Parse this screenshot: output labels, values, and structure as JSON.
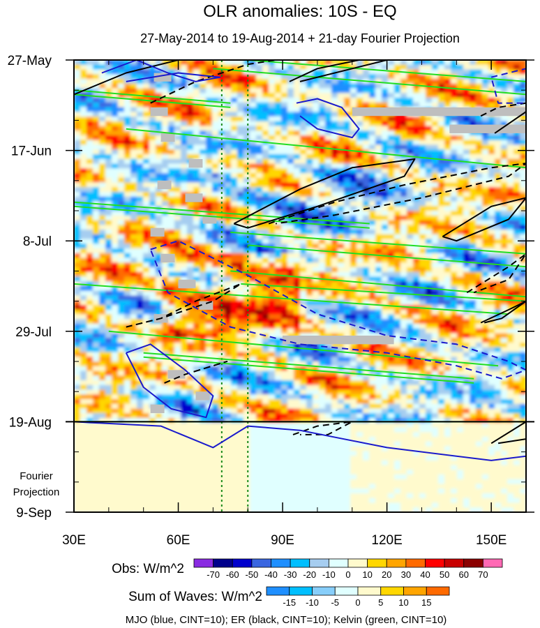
{
  "chart_data": {
    "type": "heatmap",
    "title": "OLR anomalies: 10S - EQ",
    "subtitle": "27-May-2014 to 19-Aug-2014 + 21-day Fourier Projection",
    "x_axis": {
      "range": [
        30,
        160
      ],
      "ticks": [
        30,
        60,
        90,
        120,
        150
      ],
      "tick_labels": [
        "30E",
        "60E",
        "90E",
        "120E",
        "150E"
      ],
      "minor_step": 10
    },
    "y_axis": {
      "range": [
        "2014-05-27",
        "2014-09-09"
      ],
      "ticks": [
        "2014-05-27",
        "2014-06-17",
        "2014-07-08",
        "2014-07-29",
        "2014-08-19",
        "2014-09-09"
      ],
      "tick_labels": [
        "27-May",
        "17-Jun",
        "8-Jul",
        "29-Jul",
        "19-Aug",
        "9-Sep"
      ],
      "direction": "time increases downward",
      "minor_step_days": 7
    },
    "observation_end": "2014-08-19",
    "projection_label": [
      "Fourier",
      "Projection"
    ],
    "reference_longitudes": [
      72.5,
      80
    ],
    "obs_colorbar": {
      "label": "Obs: W/m^2",
      "levels": [
        -70,
        -60,
        -50,
        -40,
        -30,
        -20,
        -10,
        0,
        10,
        20,
        30,
        40,
        50,
        60,
        70
      ],
      "colors": [
        "#8a2be2",
        "#00008b",
        "#0000cd",
        "#3a66e0",
        "#1e8fff",
        "#00bfff",
        "#a6cdf0",
        "#e0ffff",
        "#fffacd",
        "#ffd700",
        "#ffa500",
        "#ff6a00",
        "#ff0000",
        "#c80000",
        "#8b0000",
        "#ff69b4"
      ]
    },
    "waves_colorbar": {
      "label": "Sum of Waves: W/m^2",
      "levels": [
        -15,
        -10,
        -5,
        0,
        5,
        10,
        15
      ],
      "colors": [
        "#1e8fff",
        "#00bfff",
        "#87cefa",
        "#e0ffff",
        "#fffacd",
        "#ffd700",
        "#ffa500",
        "#ff6a00"
      ]
    },
    "footnote": "MJO (blue, CINT=10); ER (black, CINT=10); Kelvin (green, CINT=10)",
    "series_colors": {
      "mjo": "#1a1acc",
      "er": "#000000",
      "kelvin": "#22dd22",
      "missing": "#bebebe",
      "reference": "#1a8a1a"
    },
    "mjo_contours": [
      {
        "style": "solid",
        "lon": [
          38,
          48,
          57,
          65,
          72,
          60,
          45
        ],
        "date": [
          "2014-05-30",
          "2014-05-27",
          "2014-05-30",
          "2014-06-01",
          "2014-05-31",
          "2014-05-30",
          "2014-06-01"
        ]
      },
      {
        "style": "solid",
        "lon": [
          94,
          100,
          107,
          112,
          110,
          100,
          95
        ],
        "date": [
          "2014-06-06",
          "2014-06-05",
          "2014-06-07",
          "2014-06-12",
          "2014-06-14",
          "2014-06-12",
          "2014-06-09"
        ]
      },
      {
        "style": "dashed",
        "lon": [
          52,
          60,
          80,
          100,
          120,
          140,
          155,
          160,
          153,
          140,
          120,
          95,
          75,
          57,
          52
        ],
        "date": [
          "2014-07-10",
          "2014-07-08",
          "2014-07-16",
          "2014-07-25",
          "2014-07-30",
          "2014-08-01",
          "2014-08-05",
          "2014-08-07",
          "2014-08-09",
          "2014-08-06",
          "2014-08-03",
          "2014-08-01",
          "2014-07-28",
          "2014-07-20",
          "2014-07-10"
        ]
      },
      {
        "style": "solid",
        "lon": [
          45,
          52,
          62,
          70,
          68,
          58,
          50,
          45
        ],
        "date": [
          "2014-08-03",
          "2014-08-01",
          "2014-08-07",
          "2014-08-13",
          "2014-08-18",
          "2014-08-16",
          "2014-08-11",
          "2014-08-03"
        ]
      },
      {
        "style": "solid",
        "lon": [
          30,
          55,
          70,
          80,
          95,
          120,
          150,
          160
        ],
        "date": [
          "2014-08-19",
          "2014-08-20",
          "2014-08-25",
          "2014-08-20",
          "2014-08-21",
          "2014-08-25",
          "2014-08-28",
          "2014-08-27"
        ]
      },
      {
        "style": "dashed",
        "lon": [
          150,
          160,
          160,
          152,
          150
        ],
        "date": [
          "2014-05-31",
          "2014-05-29",
          "2014-06-06",
          "2014-06-06",
          "2014-05-31"
        ]
      }
    ],
    "er_contours": [
      {
        "style": "solid",
        "lon": [
          30,
          45,
          60,
          72
        ],
        "date": [
          "2014-06-04",
          "2014-05-30",
          "2014-05-27",
          "2014-05-27"
        ]
      },
      {
        "style": "dashed",
        "lon": [
          52,
          65,
          80,
          88
        ],
        "date": [
          "2014-06-06",
          "2014-06-01",
          "2014-05-28",
          "2014-05-27"
        ]
      },
      {
        "style": "solid",
        "lon": [
          92,
          100,
          112,
          120,
          110,
          95
        ],
        "date": [
          "2014-06-01",
          "2014-05-29",
          "2014-05-27",
          "2014-05-27",
          "2014-05-29",
          "2014-06-01"
        ]
      },
      {
        "style": "solid",
        "lon": [
          76,
          95,
          110,
          128,
          125,
          100,
          80,
          76
        ],
        "date": [
          "2014-07-04",
          "2014-06-26",
          "2014-06-21",
          "2014-06-19",
          "2014-06-23",
          "2014-06-30",
          "2014-07-05",
          "2014-07-04"
        ]
      },
      {
        "style": "dashed",
        "lon": [
          86,
          105,
          125,
          150,
          160,
          155,
          130,
          105,
          88
        ],
        "date": [
          "2014-07-04",
          "2014-06-29",
          "2014-06-25",
          "2014-06-21",
          "2014-06-20",
          "2014-06-23",
          "2014-06-28",
          "2014-07-02",
          "2014-07-04"
        ]
      },
      {
        "style": "solid",
        "lon": [
          136,
          150,
          160,
          155,
          140,
          136
        ],
        "date": [
          "2014-07-07",
          "2014-06-30",
          "2014-06-28",
          "2014-07-03",
          "2014-07-08",
          "2014-07-07"
        ]
      },
      {
        "style": "dashed",
        "lon": [
          143,
          155,
          160,
          155,
          145
        ],
        "date": [
          "2014-07-20",
          "2014-07-14",
          "2014-07-11",
          "2014-07-17",
          "2014-07-20"
        ]
      },
      {
        "style": "solid",
        "lon": [
          147,
          155,
          160,
          153,
          148
        ],
        "date": [
          "2014-07-27",
          "2014-07-24",
          "2014-07-22",
          "2014-07-26",
          "2014-07-27"
        ]
      },
      {
        "style": "dashed",
        "lon": [
          45,
          55,
          65,
          78,
          70,
          55,
          45
        ],
        "date": [
          "2014-07-28",
          "2014-07-26",
          "2014-07-22",
          "2014-07-18",
          "2014-07-22",
          "2014-07-26",
          "2014-07-28"
        ]
      },
      {
        "style": "dashed",
        "lon": [
          56,
          62,
          74,
          66
        ],
        "date": [
          "2014-08-10",
          "2014-08-08",
          "2014-08-05",
          "2014-08-07"
        ]
      },
      {
        "style": "dashed",
        "lon": [
          93,
          100,
          110,
          103,
          95
        ],
        "date": [
          "2014-08-22",
          "2014-08-20",
          "2014-08-19",
          "2014-08-22",
          "2014-08-22"
        ]
      },
      {
        "style": "solid",
        "lon": [
          150,
          160,
          160,
          152
        ],
        "date": [
          "2014-08-24",
          "2014-08-19",
          "2014-08-23",
          "2014-08-24"
        ]
      },
      {
        "style": "solid",
        "lon": [
          151,
          160
        ],
        "date": [
          "2014-06-13",
          "2014-06-08"
        ]
      },
      {
        "style": "dashed",
        "lon": [
          147,
          152,
          160
        ],
        "date": [
          "2014-06-09",
          "2014-06-07",
          "2014-06-06"
        ]
      }
    ],
    "kelvin_contours": [
      {
        "lon": [
          30,
          75
        ],
        "date": [
          "2014-06-03",
          "2014-06-06"
        ]
      },
      {
        "lon": [
          30,
          75
        ],
        "date": [
          "2014-06-04",
          "2014-06-07"
        ]
      },
      {
        "lon": [
          70,
          160
        ],
        "date": [
          "2014-05-29",
          "2014-06-04"
        ]
      },
      {
        "lon": [
          80,
          160
        ],
        "date": [
          "2014-05-27",
          "2014-06-01"
        ]
      },
      {
        "lon": [
          45,
          160
        ],
        "date": [
          "2014-06-12",
          "2014-06-21"
        ]
      },
      {
        "lon": [
          30,
          115
        ],
        "date": [
          "2014-06-29",
          "2014-07-04"
        ]
      },
      {
        "lon": [
          30,
          115
        ],
        "date": [
          "2014-06-30",
          "2014-07-05"
        ]
      },
      {
        "lon": [
          75,
          160
        ],
        "date": [
          "2014-07-06",
          "2014-07-11"
        ]
      },
      {
        "lon": [
          80,
          160
        ],
        "date": [
          "2014-07-09",
          "2014-07-14"
        ]
      },
      {
        "lon": [
          75,
          160
        ],
        "date": [
          "2014-07-15",
          "2014-07-21"
        ]
      },
      {
        "lon": [
          78,
          160
        ],
        "date": [
          "2014-07-18",
          "2014-07-22"
        ]
      },
      {
        "lon": [
          30,
          155
        ],
        "date": [
          "2014-07-18",
          "2014-07-25"
        ]
      },
      {
        "lon": [
          40,
          152
        ],
        "date": [
          "2014-07-29",
          "2014-08-06"
        ]
      },
      {
        "lon": [
          50,
          145
        ],
        "date": [
          "2014-08-03",
          "2014-08-09"
        ]
      },
      {
        "lon": [
          50,
          145
        ],
        "date": [
          "2014-08-04",
          "2014-08-10"
        ]
      },
      {
        "lon": [
          30,
          160
        ],
        "date": [
          "2014-08-19",
          "2014-08-19"
        ]
      }
    ],
    "missing_data_cells": [
      {
        "lon": [
          53,
          58
        ],
        "date": [
          "2014-05-30",
          "2014-06-01"
        ]
      },
      {
        "lon": [
          52,
          57
        ],
        "date": [
          "2014-06-07",
          "2014-06-09"
        ]
      },
      {
        "lon": [
          55,
          59
        ],
        "date": [
          "2014-06-13",
          "2014-06-15"
        ]
      },
      {
        "lon": [
          110,
          160
        ],
        "date": [
          "2014-06-07",
          "2014-06-09"
        ]
      },
      {
        "lon": [
          138,
          160
        ],
        "date": [
          "2014-06-11",
          "2014-06-13"
        ]
      },
      {
        "lon": [
          63,
          67
        ],
        "date": [
          "2014-06-19",
          "2014-06-21"
        ]
      },
      {
        "lon": [
          54,
          58
        ],
        "date": [
          "2014-06-24",
          "2014-06-26"
        ]
      },
      {
        "lon": [
          62,
          67
        ],
        "date": [
          "2014-06-27",
          "2014-06-29"
        ]
      },
      {
        "lon": [
          67,
          71
        ],
        "date": [
          "2014-07-02",
          "2014-07-04"
        ]
      },
      {
        "lon": [
          52,
          56
        ],
        "date": [
          "2014-07-05",
          "2014-07-07"
        ]
      },
      {
        "lon": [
          55,
          59
        ],
        "date": [
          "2014-07-11",
          "2014-07-13"
        ]
      },
      {
        "lon": [
          60,
          65
        ],
        "date": [
          "2014-07-17",
          "2014-07-19"
        ]
      },
      {
        "lon": [
          66,
          70
        ],
        "date": [
          "2014-07-22",
          "2014-07-24"
        ]
      },
      {
        "lon": [
          53,
          57
        ],
        "date": [
          "2014-07-25",
          "2014-07-27"
        ]
      },
      {
        "lon": [
          90,
          122
        ],
        "date": [
          "2014-07-30",
          "2014-08-01"
        ]
      },
      {
        "lon": [
          57,
          62
        ],
        "date": [
          "2014-08-07",
          "2014-08-09"
        ]
      },
      {
        "lon": [
          65,
          69
        ],
        "date": [
          "2014-08-12",
          "2014-08-14"
        ]
      },
      {
        "lon": [
          52,
          56
        ],
        "date": [
          "2014-08-15",
          "2014-08-17"
        ]
      }
    ]
  }
}
